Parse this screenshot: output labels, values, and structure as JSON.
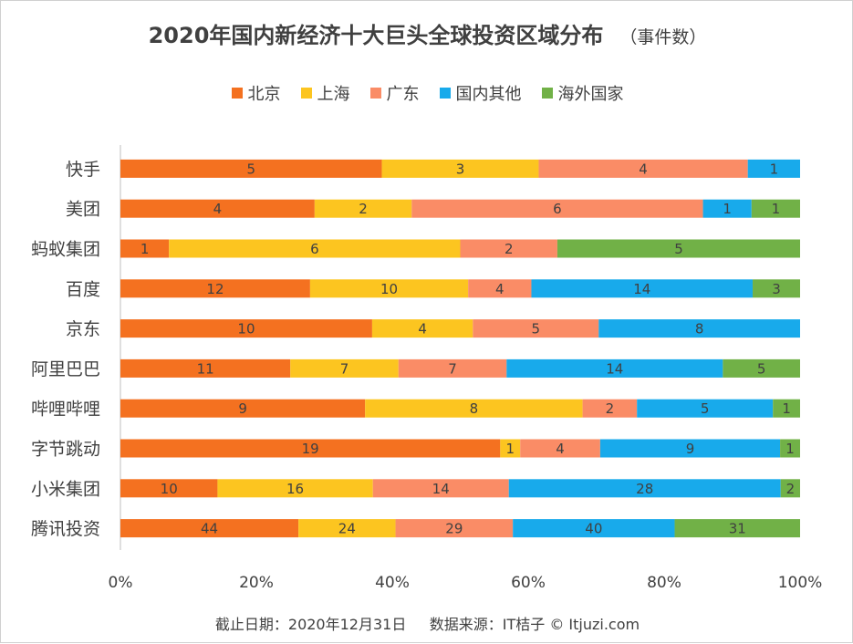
{
  "chart_data": {
    "type": "bar",
    "orientation": "horizontal",
    "stacked": "percent",
    "title": "2020年国内新经济十大巨头全球投资区域分布",
    "subtitle": "（事件数）",
    "categories": [
      "快手",
      "美团",
      "蚂蚁集团",
      "百度",
      "京东",
      "阿里巴巴",
      "哔哩哔哩",
      "字节跳动",
      "小米集团",
      "腾讯投资"
    ],
    "series": [
      {
        "name": "北京",
        "color": "#f47120",
        "values": [
          5,
          4,
          1,
          12,
          10,
          11,
          9,
          19,
          10,
          44
        ]
      },
      {
        "name": "上海",
        "color": "#fcc520",
        "values": [
          3,
          2,
          6,
          10,
          4,
          7,
          8,
          1,
          16,
          24
        ]
      },
      {
        "name": "广东",
        "color": "#fa8c66",
        "values": [
          4,
          6,
          2,
          4,
          5,
          7,
          2,
          4,
          14,
          29
        ]
      },
      {
        "name": "国内其他",
        "color": "#18aaeb",
        "values": [
          1,
          1,
          0,
          14,
          8,
          14,
          5,
          9,
          28,
          40
        ]
      },
      {
        "name": "海外国家",
        "color": "#71b147",
        "values": [
          0,
          1,
          5,
          3,
          0,
          5,
          1,
          1,
          2,
          31
        ]
      }
    ],
    "x_ticks": [
      "0%",
      "20%",
      "40%",
      "60%",
      "80%",
      "100%"
    ],
    "xlim": [
      0,
      100
    ],
    "grid": false,
    "legend_position": "top"
  },
  "footer": "截止日期：2020年12月31日     数据来源：IT桔子 © Itjuzi.com"
}
